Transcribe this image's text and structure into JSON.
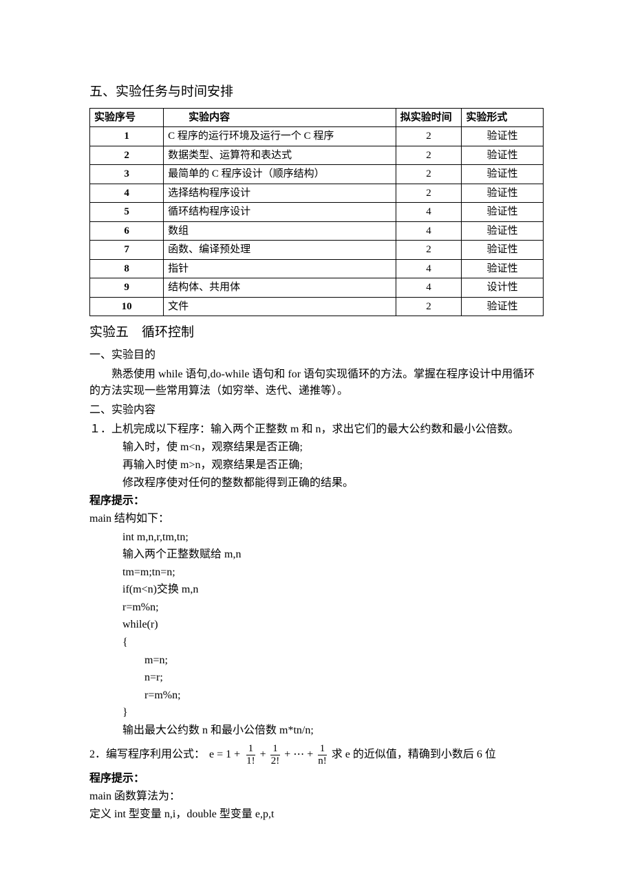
{
  "heading_section5": "五、实验任务与时间安排",
  "table": {
    "columns": [
      "实验序号",
      "实验内容",
      "拟实验时间",
      "实验形式"
    ],
    "rows": [
      {
        "seq": "1",
        "content": "C 程序的运行环境及运行一个 C 程序",
        "time": "2",
        "form": "验证性"
      },
      {
        "seq": "2",
        "content": "数据类型、运算符和表达式",
        "time": "2",
        "form": "验证性"
      },
      {
        "seq": "3",
        "content": "最简单的 C 程序设计（顺序结构）",
        "time": "2",
        "form": "验证性"
      },
      {
        "seq": "4",
        "content": "选择结构程序设计",
        "time": "2",
        "form": "验证性"
      },
      {
        "seq": "5",
        "content": "循环结构程序设计",
        "time": "4",
        "form": "验证性"
      },
      {
        "seq": "6",
        "content": "数组",
        "time": "4",
        "form": "验证性"
      },
      {
        "seq": "7",
        "content": "函数、编译预处理",
        "time": "2",
        "form": "验证性"
      },
      {
        "seq": "8",
        "content": "指针",
        "time": "4",
        "form": "验证性"
      },
      {
        "seq": "9",
        "content": "结构体、共用体",
        "time": "4",
        "form": "设计性"
      },
      {
        "seq": "10",
        "content": "文件",
        "time": "2",
        "form": "验证性"
      }
    ]
  },
  "exp5_title": "实验五　循环控制",
  "sec1_heading": "一、实验目的",
  "sec1_body": "熟悉使用 while 语句,do-while 语句和 for 语句实现循环的方法。掌握在程序设计中用循环的方法实现一些常用算法（如穷举、迭代、递推等）。",
  "sec2_heading": "二、实验内容",
  "q1_line1": "１．上机完成以下程序：输入两个正整数 m 和 n，求出它们的最大公约数和最小公倍数。",
  "q1_line2": "输入时，使 m<n，观察结果是否正确;",
  "q1_line3": "再输入时使 m>n，观察结果是否正确;",
  "q1_line4": "修改程序使对任何的整数都能得到正确的结果。",
  "hint_label": "程序提示：",
  "main_struct_label": "main 结构如下：",
  "code": {
    "l1": "int m,n,r,tm,tn;",
    "l2a": "输入两个正整数赋给 ",
    "l2b": "m,n",
    "l3": "tm=m;tn=n;",
    "l4a": "if(m<n)",
    "l4b": "交换 ",
    "l4c": "m,n",
    "l5": "r=m%n;",
    "l6": "while(r)",
    "l7": "{",
    "l8": "m=n;",
    "l9": "n=r;",
    "l10": "r=m%n;",
    "l11": "}",
    "l12a": "输出最大公约数 ",
    "l12b": "n ",
    "l12c": "和最小公倍数 ",
    "l12d": "m*tn/n;"
  },
  "q2_prefix": "2．编写程序利用公式：",
  "formula": {
    "lead": "e = 1 +",
    "f1_num": "1",
    "f1_den": "1!",
    "plus": "+",
    "f2_num": "1",
    "f2_den": "2!",
    "dots": "+ ⋯ +",
    "fn_num": "1",
    "fn_den": "n!"
  },
  "q2_suffix": "求 e 的近似值，精确到小数后 6 位",
  "hint_label2": "程序提示：",
  "main_alg_label": "main 函数算法为：",
  "def_line": "定义 int 型变量 n,i，double 型变量 e,p,t"
}
